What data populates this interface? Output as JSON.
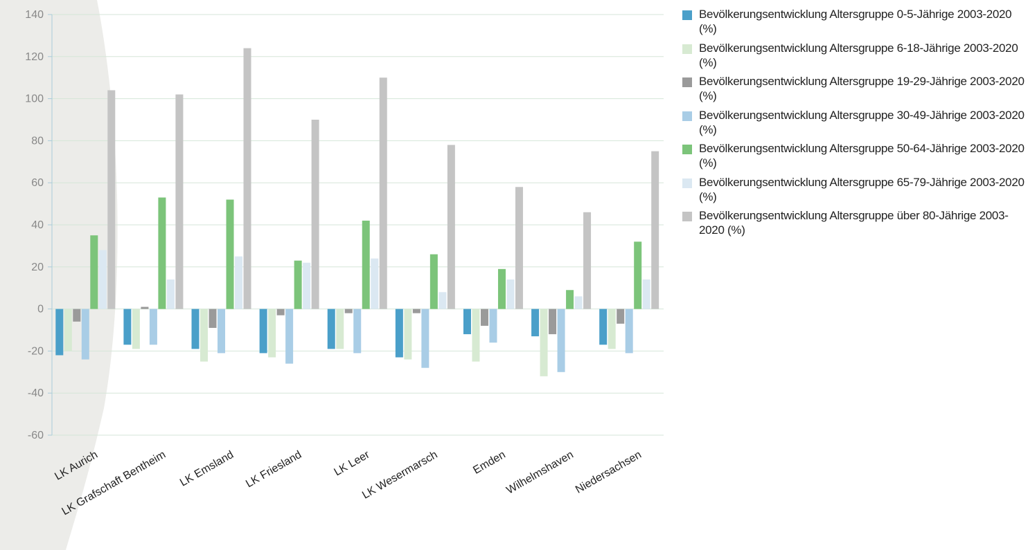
{
  "chart_data": {
    "type": "bar",
    "title": "",
    "xlabel": "",
    "ylabel": "",
    "ylim": [
      -60,
      140
    ],
    "yticks": [
      -60,
      -40,
      -20,
      0,
      20,
      40,
      60,
      80,
      100,
      120,
      140
    ],
    "grid": true,
    "legend_position": "right",
    "categories": [
      "LK Aurich",
      "LK Grafschaft Bentheim",
      "LK Emsland",
      "LK Friesland",
      "LK Leer",
      "LK Wesermarsch",
      "Emden",
      "Wilhelmshaven",
      "Niedersachsen"
    ],
    "series": [
      {
        "name": "Bevölkerungsentwicklung Altersgruppe 0-5-Jährige 2003-2020 (%)",
        "color": "#4a9fc9",
        "values": [
          -22,
          -17,
          -19,
          -21,
          -19,
          -23,
          -12,
          -13,
          -17
        ]
      },
      {
        "name": "Bevölkerungsentwicklung Altersgruppe 6-18-Jährige 2003-2020 (%)",
        "color": "#d7ead2",
        "values": [
          -20,
          -19,
          -25,
          -23,
          -19,
          -24,
          -25,
          -32,
          -19
        ]
      },
      {
        "name": "Bevölkerungsentwicklung Altersgruppe 19-29-Jährige 2003-2020 (%)",
        "color": "#9a9a9a",
        "values": [
          -6,
          1,
          -9,
          -3,
          -2,
          -2,
          -8,
          -12,
          -7
        ]
      },
      {
        "name": "Bevölkerungsentwicklung Altersgruppe 30-49-Jährige 2003-2020 (%)",
        "color": "#a9cde6",
        "values": [
          -24,
          -17,
          -21,
          -26,
          -21,
          -28,
          -16,
          -30,
          -21
        ]
      },
      {
        "name": "Bevölkerungsentwicklung Altersgruppe 50-64-Jährige 2003-2020 (%)",
        "color": "#7cc47a",
        "values": [
          35,
          53,
          52,
          23,
          42,
          26,
          19,
          9,
          32
        ]
      },
      {
        "name": "Bevölkerungsentwicklung Altersgruppe 65-79-Jährige 2003-2020 (%)",
        "color": "#dbe8f2",
        "values": [
          28,
          14,
          25,
          22,
          24,
          8,
          14,
          6,
          14
        ]
      },
      {
        "name": "Bevölkerungsentwicklung Altersgruppe über 80-Jährige 2003-2020 (%)",
        "color": "#c4c4c4",
        "values": [
          104,
          102,
          124,
          90,
          110,
          78,
          58,
          46,
          75
        ]
      }
    ]
  }
}
